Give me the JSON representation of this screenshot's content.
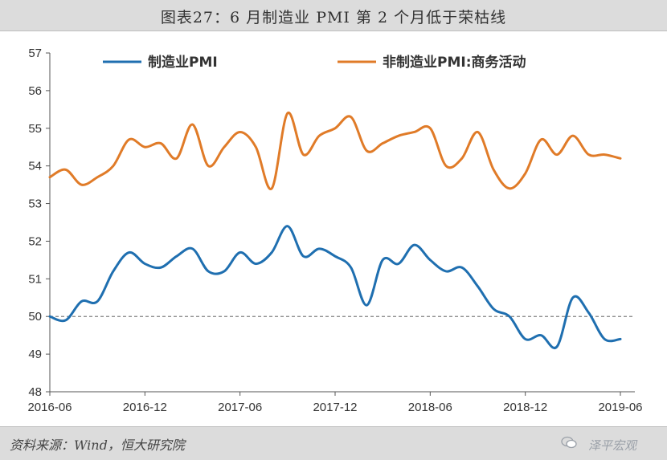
{
  "header": {
    "title": "图表27：6 月制造业 PMI 第 2 个月低于荣枯线"
  },
  "footer": {
    "source": "资料来源：Wind，恒大研究院",
    "watermark": "泽平宏观"
  },
  "chart_data": {
    "type": "line",
    "title": "图表27：6 月制造业 PMI 第 2 个月低于荣枯线",
    "xlabel": "",
    "ylabel": "",
    "ylim": [
      48,
      57
    ],
    "yticks": [
      48,
      49,
      50,
      51,
      52,
      53,
      54,
      55,
      56,
      57
    ],
    "xtick_labels": [
      "2016-06",
      "2016-12",
      "2017-06",
      "2017-12",
      "2018-06",
      "2018-12",
      "2019-06"
    ],
    "x": [
      "2016-06",
      "2016-07",
      "2016-08",
      "2016-09",
      "2016-10",
      "2016-11",
      "2016-12",
      "2017-01",
      "2017-02",
      "2017-03",
      "2017-04",
      "2017-05",
      "2017-06",
      "2017-07",
      "2017-08",
      "2017-09",
      "2017-10",
      "2017-11",
      "2017-12",
      "2018-01",
      "2018-02",
      "2018-03",
      "2018-04",
      "2018-05",
      "2018-06",
      "2018-07",
      "2018-08",
      "2018-09",
      "2018-10",
      "2018-11",
      "2018-12",
      "2019-01",
      "2019-02",
      "2019-03",
      "2019-04",
      "2019-05",
      "2019-06"
    ],
    "reference_line": {
      "value": 50,
      "style": "dashed",
      "color": "#808080"
    },
    "legend_position": "top",
    "grid": false,
    "series": [
      {
        "name": "制造业PMI",
        "color": "#1f6fb0",
        "values": [
          50.0,
          49.9,
          50.4,
          50.4,
          51.2,
          51.7,
          51.4,
          51.3,
          51.6,
          51.8,
          51.2,
          51.2,
          51.7,
          51.4,
          51.7,
          52.4,
          51.6,
          51.8,
          51.6,
          51.3,
          50.3,
          51.5,
          51.4,
          51.9,
          51.5,
          51.2,
          51.3,
          50.8,
          50.2,
          50.0,
          49.4,
          49.5,
          49.2,
          50.5,
          50.1,
          49.4,
          49.4
        ]
      },
      {
        "name": "非制造业PMI:商务活动",
        "color": "#e07b28",
        "values": [
          53.7,
          53.9,
          53.5,
          53.7,
          54.0,
          54.7,
          54.5,
          54.6,
          54.2,
          55.1,
          54.0,
          54.5,
          54.9,
          54.5,
          53.4,
          55.4,
          54.3,
          54.8,
          55.0,
          55.3,
          54.4,
          54.6,
          54.8,
          54.9,
          55.0,
          54.0,
          54.2,
          54.9,
          53.9,
          53.4,
          53.8,
          54.7,
          54.3,
          54.8,
          54.3,
          54.3,
          54.2
        ]
      }
    ]
  }
}
